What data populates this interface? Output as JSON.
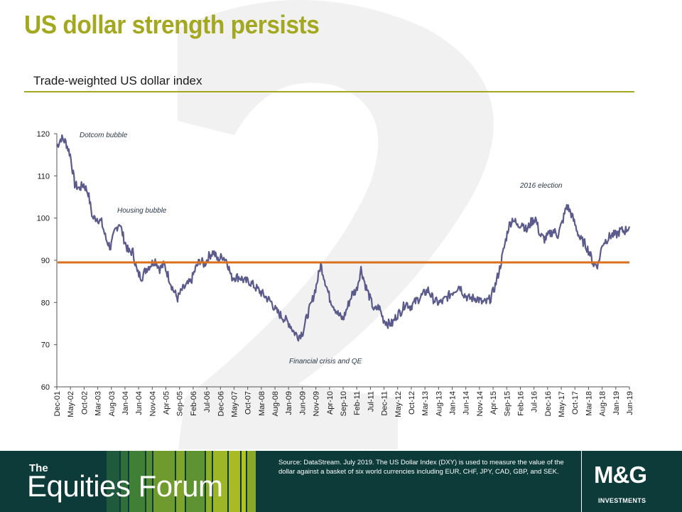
{
  "page": {
    "title": "US dollar strength persists",
    "subtitle": "Trade-weighted US dollar index"
  },
  "chart_data": {
    "type": "line",
    "ylim": [
      60,
      120
    ],
    "yticks": [
      60,
      70,
      80,
      90,
      100,
      110,
      120
    ],
    "xticks": [
      "Dec-01",
      "May-02",
      "Oct-02",
      "Mar-03",
      "Aug-03",
      "Jan-04",
      "Jun-04",
      "Nov-04",
      "Apr-05",
      "Sep-05",
      "Feb-06",
      "Jul-06",
      "Dec-06",
      "May-07",
      "Oct-07",
      "Mar-08",
      "Aug-08",
      "Jan-09",
      "Jun-09",
      "Nov-09",
      "Apr-10",
      "Sep-10",
      "Feb-11",
      "Jul-11",
      "Dec-11",
      "May-12",
      "Oct-12",
      "Mar-13",
      "Aug-13",
      "Jan-14",
      "Jun-14",
      "Nov-14",
      "Apr-15",
      "Sep-15",
      "Feb-16",
      "Jul-16",
      "Dec-16",
      "May-17",
      "Oct-17",
      "Mar-18",
      "Aug-18",
      "Jan-19",
      "Jun-19"
    ],
    "series": [
      {
        "values": [
          117,
          119,
          118,
          115,
          108,
          107,
          108,
          106,
          100,
          100,
          99,
          95,
          93,
          97,
          99,
          95,
          92,
          92,
          87,
          86,
          88,
          89,
          90,
          88,
          89,
          86,
          83,
          81,
          83,
          84,
          85,
          88,
          90,
          89,
          91,
          92,
          90,
          91,
          90,
          86,
          86,
          86,
          85,
          85,
          84,
          83,
          82,
          81,
          80,
          78,
          77,
          76,
          75,
          73,
          72,
          73,
          77,
          80,
          84,
          89,
          85,
          81,
          79,
          77,
          76,
          79,
          82,
          83,
          88,
          84,
          81,
          78,
          79,
          76,
          75,
          75,
          77,
          78,
          80,
          79,
          80,
          81,
          82,
          83,
          81,
          80,
          80,
          81,
          82,
          83,
          84,
          82,
          81,
          81,
          81,
          80,
          80,
          81,
          84,
          88,
          93,
          98,
          100,
          98,
          99,
          97,
          99,
          100,
          96,
          95,
          96,
          97,
          96,
          99,
          103,
          101,
          98,
          95,
          94,
          92,
          89,
          89,
          94,
          95,
          96,
          96,
          97,
          97,
          98
        ]
      }
    ],
    "reference_line": {
      "value": 89.5
    },
    "annotations": [
      {
        "text": "Dotcom bubble"
      },
      {
        "text": "Housing bubble"
      },
      {
        "text": "Financial crisis and QE"
      },
      {
        "text": "2016 election"
      }
    ],
    "colors": {
      "line": "#5a5a8c",
      "reference": "#d9711f",
      "axis": "#555555"
    }
  },
  "footer": {
    "brand_the": "The",
    "brand_name": "Equities Forum",
    "source": "Source: DataStream. July 2019. The US Dollar Index (DXY) is used to measure the value of the dollar against a basket of six world currencies including EUR,  CHF,  JPY, CAD, GBP,  and SEK.",
    "logo": "M&G",
    "logo_sub": "INVESTMENTS"
  }
}
